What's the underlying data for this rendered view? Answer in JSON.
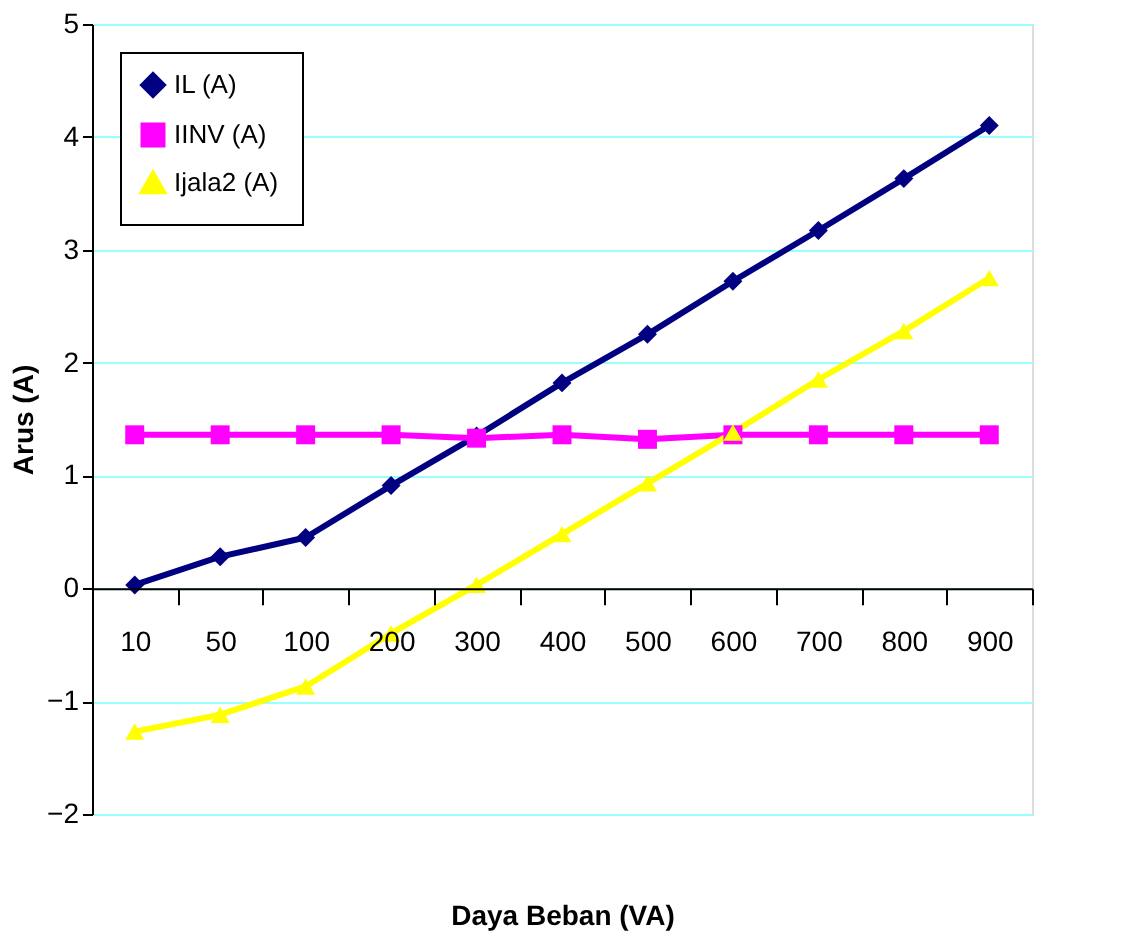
{
  "chart_data": {
    "type": "line",
    "xlabel": "Daya Beban (VA)",
    "ylabel": "Arus (A)",
    "categories": [
      "10",
      "50",
      "100",
      "200",
      "300",
      "400",
      "500",
      "600",
      "700",
      "800",
      "900"
    ],
    "series": [
      {
        "name": "IL (A)",
        "color": "#000080",
        "marker": "diamond",
        "values": [
          0.03,
          0.28,
          0.45,
          0.91,
          1.35,
          1.82,
          2.25,
          2.72,
          3.17,
          3.63,
          4.1
        ]
      },
      {
        "name": "IINV   (A)",
        "color": "#ff00ff",
        "marker": "square",
        "values": [
          1.36,
          1.36,
          1.36,
          1.36,
          1.33,
          1.36,
          1.32,
          1.36,
          1.36,
          1.36,
          1.36
        ]
      },
      {
        "name": "Ijala2 (A)",
        "color": "#ffff00",
        "marker": "triangle",
        "values": [
          -1.27,
          -1.12,
          -0.87,
          -0.4,
          0.03,
          0.48,
          0.93,
          1.38,
          1.85,
          2.28,
          2.75
        ]
      }
    ],
    "ylim": [
      -2,
      5
    ],
    "yticks": [
      -2,
      -1,
      0,
      1,
      2,
      3,
      4,
      5
    ],
    "grid": "y",
    "legend": "top left",
    "line_style": "solid"
  }
}
